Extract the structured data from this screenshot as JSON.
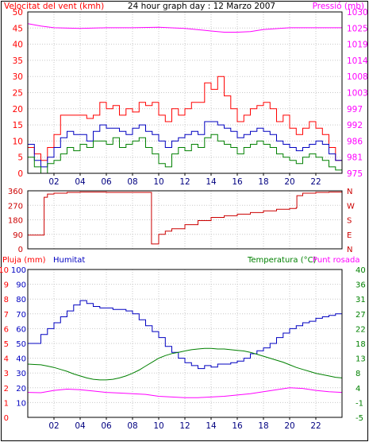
{
  "title": "24 hour graph day : 12 Marzo 2007",
  "colors": {
    "red": "#ff0000",
    "darkred": "#cc0000",
    "blue": "#0000c0",
    "green": "#008000",
    "magenta": "#ff00ff",
    "grid": "#c8c8c8",
    "frame": "#000000"
  },
  "chart_data": [
    {
      "id": "wind-pressure",
      "type": "line",
      "grid": true,
      "left_axis_label": "Velocitat del vent (kmh)",
      "right_axis_label": "Pressió (mb)",
      "x_ticks": [
        "02",
        "04",
        "06",
        "08",
        "10",
        "12",
        "14",
        "16",
        "18",
        "20",
        "22"
      ],
      "x_range": [
        0,
        24
      ],
      "y_left_ticks": [
        "0",
        "5",
        "10",
        "15",
        "20",
        "25",
        "30",
        "35",
        "40",
        "45",
        "50"
      ],
      "y_left_range": [
        0,
        50
      ],
      "y_right_ticks": [
        "975",
        "981",
        "986",
        "992",
        "997",
        "1003",
        "1008",
        "1014",
        "1019",
        "1025",
        "1030"
      ],
      "y_right_range": [
        975,
        1030
      ],
      "series": [
        {
          "color_key": "magenta",
          "axis": "right",
          "x": [
            0,
            1,
            2,
            4,
            6,
            8,
            10,
            12,
            14,
            15,
            16,
            17,
            18,
            20,
            22,
            24
          ],
          "y": [
            1026,
            1025.2,
            1024.6,
            1024.4,
            1024.6,
            1024.6,
            1024.8,
            1024.4,
            1023.5,
            1023.1,
            1023.1,
            1023.3,
            1024.0,
            1024.6,
            1024.6,
            1024.6
          ]
        },
        {
          "color_key": "red",
          "axis": "left",
          "x": [
            0,
            0.5,
            1,
            1.5,
            2,
            2.5,
            3,
            3.5,
            4,
            4.5,
            5,
            5.5,
            6,
            6.5,
            7,
            7.5,
            8,
            8.5,
            9,
            9.5,
            10,
            10.5,
            11,
            11.5,
            12,
            12.5,
            13,
            13.5,
            14,
            14.5,
            15,
            15.5,
            16,
            16.5,
            17,
            17.5,
            18,
            18.5,
            19,
            19.5,
            20,
            20.5,
            21,
            21.5,
            22,
            22.5,
            23,
            23.5,
            24
          ],
          "y": [
            8,
            6,
            4,
            8,
            12,
            18,
            18,
            18,
            18,
            17,
            18,
            22,
            20,
            21,
            18,
            20,
            19,
            22,
            21,
            22,
            18,
            16,
            20,
            18,
            20,
            22,
            22,
            28,
            26,
            30,
            24,
            20,
            16,
            18,
            20,
            21,
            22,
            20,
            16,
            18,
            14,
            12,
            14,
            16,
            14,
            12,
            8,
            4,
            10
          ]
        },
        {
          "color_key": "blue",
          "axis": "left",
          "x": [
            0,
            0.5,
            1,
            1.5,
            2,
            2.5,
            3,
            3.5,
            4,
            4.5,
            5,
            5.5,
            6,
            6.5,
            7,
            7.5,
            8,
            8.5,
            9,
            9.5,
            10,
            10.5,
            11,
            11.5,
            12,
            12.5,
            13,
            13.5,
            14,
            14.5,
            15,
            15.5,
            16,
            16.5,
            17,
            17.5,
            18,
            18.5,
            19,
            19.5,
            20,
            20.5,
            21,
            21.5,
            22,
            22.5,
            23,
            23.5,
            24
          ],
          "y": [
            9,
            4,
            2,
            5,
            8,
            11,
            13,
            12,
            12,
            10,
            13,
            15,
            14,
            14,
            13,
            12,
            14,
            15,
            13,
            12,
            10,
            8,
            10,
            11,
            12,
            13,
            12,
            16,
            16,
            15,
            14,
            13,
            11,
            12,
            13,
            14,
            13,
            12,
            10,
            9,
            8,
            7,
            8,
            9,
            10,
            9,
            6,
            4,
            7
          ]
        },
        {
          "color_key": "green",
          "axis": "left",
          "x": [
            0,
            0.5,
            1,
            1.5,
            2,
            2.5,
            3,
            3.5,
            4,
            4.5,
            5,
            5.5,
            6,
            6.5,
            7,
            7.5,
            8,
            8.5,
            9,
            9.5,
            10,
            10.5,
            11,
            11.5,
            12,
            12.5,
            13,
            13.5,
            14,
            14.5,
            15,
            15.5,
            16,
            16.5,
            17,
            17.5,
            18,
            18.5,
            19,
            19.5,
            20,
            20.5,
            21,
            21.5,
            22,
            22.5,
            23,
            23.5,
            24
          ],
          "y": [
            5,
            2,
            0,
            3,
            4,
            6,
            8,
            7,
            9,
            8,
            10,
            10,
            9,
            11,
            8,
            9,
            10,
            11,
            8,
            6,
            3,
            2,
            6,
            8,
            7,
            9,
            8,
            11,
            12,
            10,
            9,
            8,
            6,
            8,
            9,
            10,
            9,
            8,
            6,
            5,
            4,
            3,
            5,
            6,
            5,
            4,
            2,
            1,
            4
          ]
        }
      ]
    },
    {
      "id": "wind-direction",
      "type": "line",
      "grid": true,
      "y_left_ticks": [
        "0",
        "90",
        "180",
        "270",
        "360"
      ],
      "y_left_range": [
        0,
        360
      ],
      "y_right_ticks": [
        "N",
        "E",
        "S",
        "W",
        "N"
      ],
      "x_range": [
        0,
        24
      ],
      "series": [
        {
          "color_key": "red",
          "axis": "left",
          "x": [
            0,
            1.2,
            1.25,
            1.5,
            2,
            3,
            4,
            5,
            6,
            7,
            8,
            9,
            9.4,
            9.45,
            9.8,
            10,
            10.5,
            11,
            12,
            13,
            14,
            15,
            16,
            17,
            18,
            19,
            20,
            20.5,
            20.55,
            21,
            22,
            23,
            24
          ],
          "y": [
            85,
            85,
            320,
            340,
            345,
            350,
            352,
            352,
            350,
            350,
            350,
            350,
            350,
            30,
            30,
            90,
            110,
            125,
            150,
            175,
            195,
            205,
            215,
            225,
            235,
            245,
            250,
            255,
            330,
            345,
            350,
            352,
            352
          ]
        }
      ]
    },
    {
      "id": "rain-humidity-temperature",
      "type": "line",
      "grid": true,
      "header_left": "Pluja (mm)",
      "header_mid": "Humitat",
      "header_right_a": "Temperatura (°C)",
      "header_right_b": "Punt rosada",
      "x_ticks": [
        "02",
        "04",
        "06",
        "08",
        "10",
        "12",
        "14",
        "16",
        "18",
        "20",
        "22"
      ],
      "x_range": [
        0,
        24
      ],
      "y_rain_ticks": [
        "0",
        "1",
        "2",
        "3",
        "4",
        "5",
        "6",
        "7",
        "8",
        "9",
        "10"
      ],
      "y_rain_range": [
        0,
        10
      ],
      "y_hum_ticks": [
        "10",
        "20",
        "30",
        "40",
        "50",
        "60",
        "70",
        "80",
        "90",
        "100"
      ],
      "y_hum_range": [
        0,
        100
      ],
      "y_temp_ticks": [
        "-5",
        "-1",
        "4",
        "8",
        "13",
        "18",
        "22",
        "27",
        "31",
        "36",
        "40"
      ],
      "y_temp_range": [
        -5,
        40
      ],
      "series": [
        {
          "color_key": "blue",
          "axis": "hum",
          "x": [
            0,
            0.5,
            1,
            1.5,
            2,
            2.5,
            3,
            3.5,
            4,
            4.5,
            5,
            5.5,
            6,
            6.5,
            7,
            7.5,
            8,
            8.5,
            9,
            9.5,
            10,
            10.5,
            11,
            11.5,
            12,
            12.5,
            13,
            13.5,
            14,
            14.5,
            15,
            15.5,
            16,
            16.5,
            17,
            17.5,
            18,
            18.5,
            19,
            19.5,
            20,
            20.5,
            21,
            21.5,
            22,
            22.5,
            23,
            23.5,
            24
          ],
          "y": [
            50,
            50,
            56,
            60,
            64,
            68,
            72,
            76,
            79,
            77,
            75,
            74,
            74,
            73,
            73,
            72,
            70,
            66,
            62,
            58,
            54,
            48,
            44,
            40,
            37,
            35,
            33,
            35,
            34,
            36,
            36,
            37,
            38,
            40,
            43,
            45,
            47,
            50,
            54,
            57,
            60,
            62,
            64,
            65,
            67,
            68,
            69,
            70,
            71
          ]
        },
        {
          "color_key": "green",
          "axis": "temp",
          "x": [
            0,
            0.5,
            1,
            1.5,
            2,
            2.5,
            3,
            3.5,
            4,
            4.5,
            5,
            5.5,
            6,
            6.5,
            7,
            7.5,
            8,
            8.5,
            9,
            9.5,
            10,
            10.5,
            11,
            11.5,
            12,
            12.5,
            13,
            13.5,
            14,
            14.5,
            15,
            15.5,
            16,
            16.5,
            17,
            17.5,
            18,
            18.5,
            19,
            19.5,
            20,
            20.5,
            21,
            21.5,
            22,
            22.5,
            23,
            23.5,
            24
          ],
          "y": [
            11.2,
            11.1,
            11.0,
            10.6,
            10.2,
            9.6,
            9.0,
            8.2,
            7.6,
            7.0,
            6.6,
            6.4,
            6.4,
            6.6,
            7.0,
            7.6,
            8.4,
            9.4,
            10.6,
            11.8,
            13.0,
            13.8,
            14.4,
            14.8,
            15.2,
            15.6,
            15.8,
            16.0,
            16.0,
            15.8,
            15.8,
            15.6,
            15.4,
            15.2,
            14.8,
            14.2,
            13.6,
            13.0,
            12.4,
            11.8,
            11.0,
            10.2,
            9.6,
            9.0,
            8.4,
            8.0,
            7.6,
            7.2,
            7.0
          ]
        },
        {
          "color_key": "magenta",
          "axis": "temp",
          "x": [
            0,
            1,
            2,
            3,
            4,
            5,
            6,
            7,
            8,
            9,
            10,
            11,
            12,
            13,
            14,
            15,
            16,
            17,
            18,
            19,
            20,
            21,
            22,
            23,
            24
          ],
          "y": [
            2.6,
            2.5,
            3.2,
            3.6,
            3.4,
            3.0,
            2.6,
            2.4,
            2.2,
            2.0,
            1.4,
            1.2,
            1.0,
            1.0,
            1.2,
            1.4,
            1.8,
            2.2,
            2.8,
            3.4,
            4.0,
            3.8,
            3.2,
            2.8,
            2.6
          ]
        },
        {
          "color_key": "red",
          "axis": "rain",
          "x": [
            0,
            24
          ],
          "y": [
            0,
            0
          ]
        }
      ]
    }
  ]
}
